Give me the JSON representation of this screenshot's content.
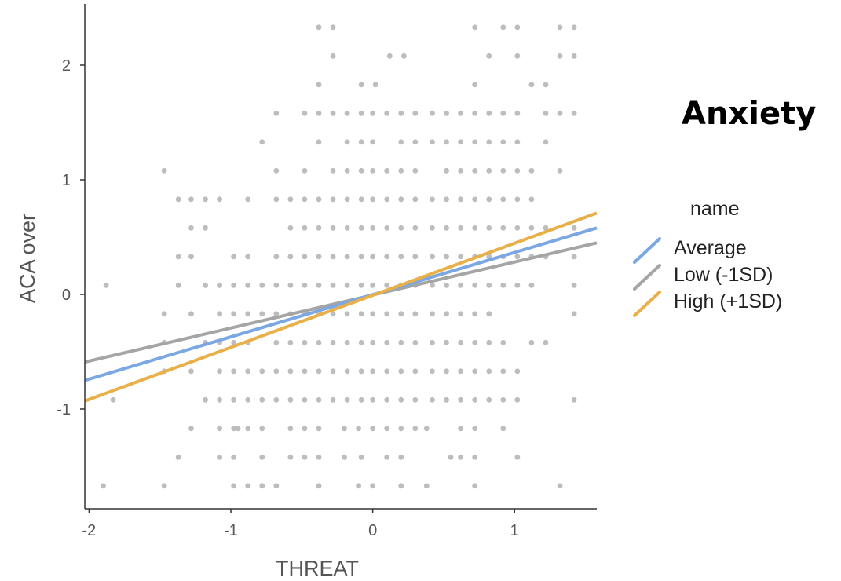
{
  "annotation": {
    "title": "Anxiety"
  },
  "legend": {
    "title": "name",
    "items": [
      {
        "label": "Average",
        "color": "#7ba7e3"
      },
      {
        "label": "Low (-1SD)",
        "color": "#a5a5a5"
      },
      {
        "label": "High (+1SD)",
        "color": "#e9b04a"
      }
    ]
  },
  "chart_data": {
    "type": "scatter",
    "xlabel": "THREAT",
    "ylabel": "ACA over",
    "xlim": [
      -2.03,
      1.58
    ],
    "ylim": [
      -1.87,
      2.5
    ],
    "x_ticks": [
      -2,
      -1,
      0,
      1
    ],
    "y_ticks": [
      -1,
      0,
      1,
      2
    ],
    "x_tick_labels": [
      "-2",
      "-1",
      "0",
      "1"
    ],
    "y_tick_labels": [
      "-1",
      "0",
      "1",
      "2"
    ],
    "grid": false,
    "legend_position": "right",
    "series": [
      {
        "name": "Average",
        "type": "line",
        "color": "#7ba7e3",
        "x": [
          -2.03,
          1.58
        ],
        "y": [
          -0.75,
          0.58
        ]
      },
      {
        "name": "Low (-1SD)",
        "type": "line",
        "color": "#a5a5a5",
        "x": [
          -2.03,
          1.58
        ],
        "y": [
          -0.59,
          0.45
        ]
      },
      {
        "name": "High (+1SD)",
        "type": "line",
        "color": "#e9b04a",
        "x": [
          -2.03,
          1.58
        ],
        "y": [
          -0.93,
          0.71
        ]
      }
    ],
    "scatter_points": [
      [
        -1.9,
        -1.67
      ],
      [
        -1.47,
        -1.67
      ],
      [
        -0.98,
        -1.67
      ],
      [
        -0.88,
        -1.67
      ],
      [
        -0.78,
        -1.67
      ],
      [
        -0.68,
        -1.67
      ],
      [
        -0.38,
        -1.67
      ],
      [
        -0.1,
        -1.67
      ],
      [
        0.0,
        -1.67
      ],
      [
        0.2,
        -1.67
      ],
      [
        0.38,
        -1.67
      ],
      [
        0.72,
        -1.67
      ],
      [
        1.32,
        -1.67
      ],
      [
        -1.37,
        -1.42
      ],
      [
        -1.08,
        -1.42
      ],
      [
        -0.98,
        -1.42
      ],
      [
        -0.78,
        -1.42
      ],
      [
        -0.58,
        -1.42
      ],
      [
        -0.48,
        -1.42
      ],
      [
        -0.38,
        -1.42
      ],
      [
        -0.2,
        -1.42
      ],
      [
        -0.08,
        -1.42
      ],
      [
        0.1,
        -1.42
      ],
      [
        0.2,
        -1.42
      ],
      [
        0.55,
        -1.42
      ],
      [
        0.62,
        -1.42
      ],
      [
        0.72,
        -1.42
      ],
      [
        1.02,
        -1.42
      ],
      [
        -1.28,
        -1.17
      ],
      [
        -1.08,
        -1.17
      ],
      [
        -0.98,
        -1.17
      ],
      [
        -0.95,
        -1.17
      ],
      [
        -0.88,
        -1.17
      ],
      [
        -0.78,
        -1.17
      ],
      [
        -0.58,
        -1.17
      ],
      [
        -0.48,
        -1.17
      ],
      [
        -0.38,
        -1.17
      ],
      [
        -0.2,
        -1.17
      ],
      [
        -0.1,
        -1.17
      ],
      [
        0.0,
        -1.17
      ],
      [
        0.1,
        -1.17
      ],
      [
        0.2,
        -1.17
      ],
      [
        0.3,
        -1.17
      ],
      [
        0.38,
        -1.17
      ],
      [
        0.62,
        -1.17
      ],
      [
        0.72,
        -1.17
      ],
      [
        0.92,
        -1.17
      ],
      [
        -1.83,
        -0.92
      ],
      [
        -1.18,
        -0.92
      ],
      [
        -1.08,
        -0.92
      ],
      [
        -0.98,
        -0.92
      ],
      [
        -0.88,
        -0.92
      ],
      [
        -0.78,
        -0.92
      ],
      [
        -0.68,
        -0.92
      ],
      [
        -0.58,
        -0.92
      ],
      [
        -0.48,
        -0.92
      ],
      [
        -0.38,
        -0.92
      ],
      [
        -0.28,
        -0.92
      ],
      [
        -0.18,
        -0.92
      ],
      [
        -0.08,
        -0.92
      ],
      [
        0.0,
        -0.92
      ],
      [
        0.1,
        -0.92
      ],
      [
        0.2,
        -0.92
      ],
      [
        0.3,
        -0.92
      ],
      [
        0.42,
        -0.92
      ],
      [
        0.52,
        -0.92
      ],
      [
        0.62,
        -0.92
      ],
      [
        0.72,
        -0.92
      ],
      [
        0.82,
        -0.92
      ],
      [
        0.92,
        -0.92
      ],
      [
        1.02,
        -0.92
      ],
      [
        1.42,
        -0.92
      ],
      [
        -1.47,
        -0.67
      ],
      [
        -1.28,
        -0.67
      ],
      [
        -1.08,
        -0.67
      ],
      [
        -0.98,
        -0.67
      ],
      [
        -0.88,
        -0.67
      ],
      [
        -0.78,
        -0.67
      ],
      [
        -0.68,
        -0.67
      ],
      [
        -0.58,
        -0.67
      ],
      [
        -0.48,
        -0.67
      ],
      [
        -0.38,
        -0.67
      ],
      [
        -0.28,
        -0.67
      ],
      [
        -0.18,
        -0.67
      ],
      [
        -0.08,
        -0.67
      ],
      [
        0.0,
        -0.67
      ],
      [
        0.1,
        -0.67
      ],
      [
        0.2,
        -0.67
      ],
      [
        0.3,
        -0.67
      ],
      [
        0.42,
        -0.67
      ],
      [
        0.52,
        -0.67
      ],
      [
        0.62,
        -0.67
      ],
      [
        0.72,
        -0.67
      ],
      [
        0.82,
        -0.67
      ],
      [
        0.92,
        -0.67
      ],
      [
        1.02,
        -0.67
      ],
      [
        -1.47,
        -0.42
      ],
      [
        -1.18,
        -0.42
      ],
      [
        -1.08,
        -0.42
      ],
      [
        -0.98,
        -0.42
      ],
      [
        -0.88,
        -0.42
      ],
      [
        -0.68,
        -0.42
      ],
      [
        -0.58,
        -0.42
      ],
      [
        -0.48,
        -0.42
      ],
      [
        -0.38,
        -0.42
      ],
      [
        -0.28,
        -0.42
      ],
      [
        -0.18,
        -0.42
      ],
      [
        -0.08,
        -0.42
      ],
      [
        0.0,
        -0.42
      ],
      [
        0.1,
        -0.42
      ],
      [
        0.2,
        -0.42
      ],
      [
        0.3,
        -0.42
      ],
      [
        0.42,
        -0.42
      ],
      [
        0.52,
        -0.42
      ],
      [
        0.62,
        -0.42
      ],
      [
        0.72,
        -0.42
      ],
      [
        0.82,
        -0.42
      ],
      [
        0.92,
        -0.42
      ],
      [
        1.12,
        -0.42
      ],
      [
        1.22,
        -0.42
      ],
      [
        -1.47,
        -0.17
      ],
      [
        -1.28,
        -0.17
      ],
      [
        -1.08,
        -0.17
      ],
      [
        -0.98,
        -0.17
      ],
      [
        -0.88,
        -0.17
      ],
      [
        -0.78,
        -0.17
      ],
      [
        -0.68,
        -0.17
      ],
      [
        -0.58,
        -0.17
      ],
      [
        -0.48,
        -0.17
      ],
      [
        -0.38,
        -0.17
      ],
      [
        -0.28,
        -0.17
      ],
      [
        -0.18,
        -0.17
      ],
      [
        -0.08,
        -0.17
      ],
      [
        0.0,
        -0.17
      ],
      [
        0.1,
        -0.17
      ],
      [
        0.2,
        -0.17
      ],
      [
        0.3,
        -0.17
      ],
      [
        0.42,
        -0.17
      ],
      [
        0.52,
        -0.17
      ],
      [
        0.62,
        -0.17
      ],
      [
        0.72,
        -0.17
      ],
      [
        0.82,
        -0.17
      ],
      [
        1.42,
        -0.17
      ],
      [
        -1.88,
        0.08
      ],
      [
        -1.37,
        0.08
      ],
      [
        -1.18,
        0.08
      ],
      [
        -1.08,
        0.08
      ],
      [
        -0.98,
        0.08
      ],
      [
        -0.88,
        0.08
      ],
      [
        -0.78,
        0.08
      ],
      [
        -0.68,
        0.08
      ],
      [
        -0.58,
        0.08
      ],
      [
        -0.48,
        0.08
      ],
      [
        -0.38,
        0.08
      ],
      [
        -0.28,
        0.08
      ],
      [
        -0.18,
        0.08
      ],
      [
        -0.08,
        0.08
      ],
      [
        0.0,
        0.08
      ],
      [
        0.1,
        0.08
      ],
      [
        0.2,
        0.08
      ],
      [
        0.3,
        0.08
      ],
      [
        0.42,
        0.08
      ],
      [
        0.52,
        0.08
      ],
      [
        0.62,
        0.08
      ],
      [
        0.72,
        0.08
      ],
      [
        0.82,
        0.08
      ],
      [
        0.92,
        0.08
      ],
      [
        1.02,
        0.08
      ],
      [
        1.12,
        0.08
      ],
      [
        1.42,
        0.08
      ],
      [
        -1.37,
        0.33
      ],
      [
        -1.28,
        0.33
      ],
      [
        -0.98,
        0.33
      ],
      [
        -0.88,
        0.33
      ],
      [
        -0.68,
        0.33
      ],
      [
        -0.58,
        0.33
      ],
      [
        -0.48,
        0.33
      ],
      [
        -0.38,
        0.33
      ],
      [
        -0.28,
        0.33
      ],
      [
        -0.18,
        0.33
      ],
      [
        -0.08,
        0.33
      ],
      [
        0.0,
        0.33
      ],
      [
        0.1,
        0.33
      ],
      [
        0.2,
        0.33
      ],
      [
        0.3,
        0.33
      ],
      [
        0.42,
        0.33
      ],
      [
        0.52,
        0.33
      ],
      [
        0.62,
        0.33
      ],
      [
        0.72,
        0.33
      ],
      [
        0.82,
        0.33
      ],
      [
        0.92,
        0.33
      ],
      [
        1.02,
        0.33
      ],
      [
        1.12,
        0.33
      ],
      [
        1.22,
        0.33
      ],
      [
        1.42,
        0.33
      ],
      [
        -1.28,
        0.58
      ],
      [
        -1.18,
        0.58
      ],
      [
        -0.58,
        0.58
      ],
      [
        -0.48,
        0.58
      ],
      [
        -0.38,
        0.58
      ],
      [
        -0.28,
        0.58
      ],
      [
        -0.18,
        0.58
      ],
      [
        -0.08,
        0.58
      ],
      [
        0.0,
        0.58
      ],
      [
        0.1,
        0.58
      ],
      [
        0.2,
        0.58
      ],
      [
        0.3,
        0.58
      ],
      [
        0.42,
        0.58
      ],
      [
        0.52,
        0.58
      ],
      [
        0.62,
        0.58
      ],
      [
        0.72,
        0.58
      ],
      [
        0.82,
        0.58
      ],
      [
        0.92,
        0.58
      ],
      [
        1.02,
        0.58
      ],
      [
        1.12,
        0.58
      ],
      [
        1.22,
        0.58
      ],
      [
        1.42,
        0.58
      ],
      [
        -1.37,
        0.83
      ],
      [
        -1.28,
        0.83
      ],
      [
        -1.18,
        0.83
      ],
      [
        -1.08,
        0.83
      ],
      [
        -0.88,
        0.83
      ],
      [
        -0.68,
        0.83
      ],
      [
        -0.58,
        0.83
      ],
      [
        -0.48,
        0.83
      ],
      [
        -0.38,
        0.83
      ],
      [
        -0.28,
        0.83
      ],
      [
        -0.18,
        0.83
      ],
      [
        -0.08,
        0.83
      ],
      [
        0.0,
        0.83
      ],
      [
        0.1,
        0.83
      ],
      [
        0.2,
        0.83
      ],
      [
        0.3,
        0.83
      ],
      [
        0.42,
        0.83
      ],
      [
        0.52,
        0.83
      ],
      [
        0.62,
        0.83
      ],
      [
        0.72,
        0.83
      ],
      [
        0.82,
        0.83
      ],
      [
        0.92,
        0.83
      ],
      [
        1.02,
        0.83
      ],
      [
        1.12,
        0.83
      ],
      [
        -1.47,
        1.08
      ],
      [
        -0.68,
        1.08
      ],
      [
        -0.48,
        1.08
      ],
      [
        -0.28,
        1.08
      ],
      [
        -0.18,
        1.08
      ],
      [
        -0.08,
        1.08
      ],
      [
        0.0,
        1.08
      ],
      [
        0.1,
        1.08
      ],
      [
        0.2,
        1.08
      ],
      [
        0.3,
        1.08
      ],
      [
        0.52,
        1.08
      ],
      [
        0.62,
        1.08
      ],
      [
        0.72,
        1.08
      ],
      [
        0.82,
        1.08
      ],
      [
        0.92,
        1.08
      ],
      [
        1.02,
        1.08
      ],
      [
        1.12,
        1.08
      ],
      [
        1.32,
        1.08
      ],
      [
        -0.78,
        1.33
      ],
      [
        -0.38,
        1.33
      ],
      [
        -0.18,
        1.33
      ],
      [
        -0.08,
        1.33
      ],
      [
        0.0,
        1.33
      ],
      [
        0.2,
        1.33
      ],
      [
        0.3,
        1.33
      ],
      [
        0.42,
        1.33
      ],
      [
        0.52,
        1.33
      ],
      [
        0.62,
        1.33
      ],
      [
        0.72,
        1.33
      ],
      [
        0.82,
        1.33
      ],
      [
        0.92,
        1.33
      ],
      [
        1.02,
        1.33
      ],
      [
        1.22,
        1.33
      ],
      [
        -0.68,
        1.58
      ],
      [
        -0.48,
        1.58
      ],
      [
        -0.38,
        1.58
      ],
      [
        -0.28,
        1.58
      ],
      [
        -0.18,
        1.58
      ],
      [
        -0.08,
        1.58
      ],
      [
        0.0,
        1.58
      ],
      [
        0.1,
        1.58
      ],
      [
        0.2,
        1.58
      ],
      [
        0.3,
        1.58
      ],
      [
        0.42,
        1.58
      ],
      [
        0.52,
        1.58
      ],
      [
        0.62,
        1.58
      ],
      [
        0.72,
        1.58
      ],
      [
        0.82,
        1.58
      ],
      [
        0.92,
        1.58
      ],
      [
        1.02,
        1.58
      ],
      [
        1.22,
        1.58
      ],
      [
        1.32,
        1.58
      ],
      [
        1.42,
        1.58
      ],
      [
        -0.38,
        1.83
      ],
      [
        -0.08,
        1.83
      ],
      [
        0.02,
        1.83
      ],
      [
        0.72,
        1.83
      ],
      [
        1.12,
        1.83
      ],
      [
        1.22,
        1.83
      ],
      [
        -0.28,
        2.08
      ],
      [
        0.12,
        2.08
      ],
      [
        0.22,
        2.08
      ],
      [
        0.82,
        2.08
      ],
      [
        1.02,
        2.08
      ],
      [
        1.32,
        2.08
      ],
      [
        1.42,
        2.08
      ],
      [
        -0.38,
        2.33
      ],
      [
        -0.28,
        2.33
      ],
      [
        0.72,
        2.33
      ],
      [
        0.92,
        2.33
      ],
      [
        1.02,
        2.33
      ],
      [
        1.32,
        2.33
      ],
      [
        1.42,
        2.33
      ]
    ]
  }
}
